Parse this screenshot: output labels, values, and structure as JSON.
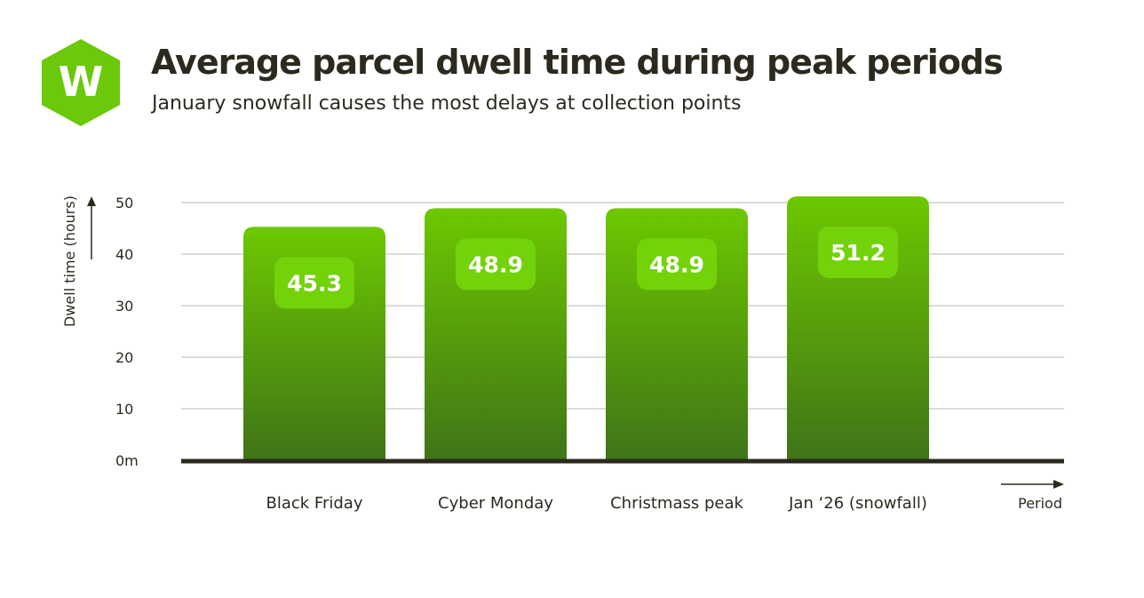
{
  "header": {
    "title": "Average parcel dwell time during peak periods",
    "subtitle": "January snowfall causes the most delays at collection points",
    "logo_letter": "W"
  },
  "colors": {
    "bar_top": "#6dc800",
    "bar_bottom": "#3f7418",
    "label_box": "#74d20a",
    "label_text": "#ffffff",
    "logo": "#6cc80a",
    "axis": "#2c2a1e",
    "grid": "#b8b8b8"
  },
  "chart_data": {
    "type": "bar",
    "title": "Average parcel dwell time during peak periods",
    "subtitle": "January snowfall causes the most delays at collection points",
    "xlabel": "Period",
    "ylabel": "Dwell time (hours)",
    "categories": [
      "Black Friday",
      "Cyber Monday",
      "Christmass peak",
      "Jan ‘26 (snowfall)"
    ],
    "values": [
      45.3,
      48.9,
      48.9,
      51.2
    ],
    "value_labels": [
      "45.3",
      "48.9",
      "48.9",
      "51.2"
    ],
    "yticks": [
      0,
      10,
      20,
      30,
      40,
      50
    ],
    "ytick_labels": [
      "0m",
      "10",
      "20",
      "30",
      "40",
      "50"
    ],
    "ylim": [
      0,
      50
    ],
    "grid": true,
    "legend": "none"
  }
}
